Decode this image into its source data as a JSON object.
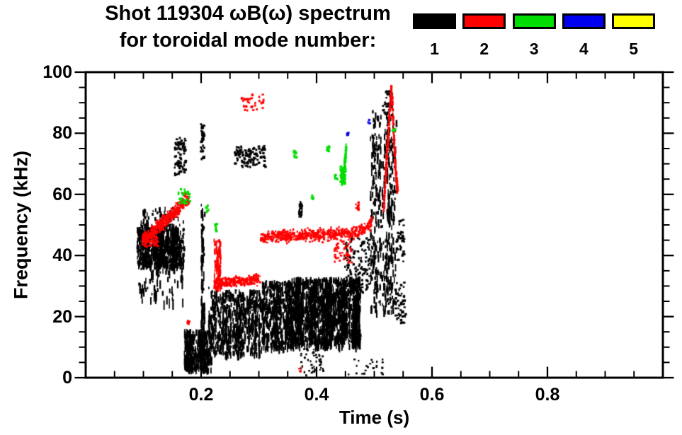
{
  "title": {
    "line1": "Shot 119304 ωB(ω) spectrum",
    "line2": "for toroidal mode number:"
  },
  "legend": {
    "entries": [
      {
        "label": "1",
        "color": "#000000"
      },
      {
        "label": "2",
        "color": "#ff0000"
      },
      {
        "label": "3",
        "color": "#00dd00"
      },
      {
        "label": "4",
        "color": "#0000ee"
      },
      {
        "label": "5",
        "color": "#ffff00"
      }
    ]
  },
  "colors": {
    "background": "#ffffff",
    "axis": "#000000"
  },
  "chart_data": {
    "type": "scatter",
    "variant": "magnetic-spectrogram-mode-scatter",
    "title": "Shot 119304 ωB(ω) spectrum for toroidal mode number: 1 2 3 4 5",
    "xlabel": "Time (s)",
    "ylabel": "Frequency (kHz)",
    "xlim": [
      0,
      1.0
    ],
    "ylim": [
      0,
      100
    ],
    "grid": false,
    "legend_position": "top-right, above plot box",
    "x_major_ticks": [
      0,
      0.2,
      0.4,
      0.6,
      0.8,
      1.0
    ],
    "x_tick_labels": [
      {
        "t": 0.2,
        "label": "0.2"
      },
      {
        "t": 0.4,
        "label": "0.4"
      },
      {
        "t": 0.6,
        "label": "0.6"
      },
      {
        "t": 0.8,
        "label": "0.8"
      }
    ],
    "x_minor_step": 0.05,
    "y_major_ticks": [
      0,
      20,
      40,
      60,
      80,
      100
    ],
    "y_tick_labels": [
      "0",
      "20",
      "40",
      "60",
      "80",
      "100"
    ],
    "y_minor_step": 5,
    "modes": [
      {
        "mode": 1,
        "color": "#000000"
      },
      {
        "mode": 2,
        "color": "#ff0000"
      },
      {
        "mode": 3,
        "color": "#00dd00"
      },
      {
        "mode": 4,
        "color": "#0000ee"
      },
      {
        "mode": 5,
        "color": "#ffff00"
      }
    ],
    "features": [
      {
        "mode": 1,
        "shape": "streaks",
        "t": [
          0.088,
          0.17
        ],
        "f": [
          37,
          50.5
        ],
        "count": 1000,
        "len": 9
      },
      {
        "mode": 1,
        "shape": "streaks",
        "t": [
          0.091,
          0.168
        ],
        "f": [
          25,
          38
        ],
        "count": 110,
        "len": 13
      },
      {
        "mode": 1,
        "shape": "dots",
        "t": [
          0.154,
          0.173
        ],
        "f": [
          66,
          79
        ],
        "count": 80,
        "size": 2.4
      },
      {
        "mode": 1,
        "shape": "streaks",
        "t": [
          0.199,
          0.205
        ],
        "f": [
          5,
          57
        ],
        "count": 120,
        "len": 12
      },
      {
        "mode": 1,
        "shape": "dots",
        "t": [
          0.199,
          0.205
        ],
        "f": [
          71,
          83
        ],
        "count": 45,
        "size": 2.2
      },
      {
        "mode": 1,
        "shape": "streaks",
        "t": [
          0.17,
          0.216
        ],
        "f": [
          3,
          16
        ],
        "count": 600,
        "len": 9
      },
      {
        "mode": 1,
        "shape": "streaks",
        "t": [
          0.216,
          0.305
        ],
        "f": [
          8,
          29
        ],
        "count": 1000,
        "len": 9
      },
      {
        "mode": 1,
        "shape": "streaks",
        "t": [
          0.305,
          0.356
        ],
        "f": [
          10,
          32
        ],
        "count": 850,
        "len": 9
      },
      {
        "mode": 1,
        "shape": "streaks",
        "t": [
          0.356,
          0.475
        ],
        "f": [
          11,
          33
        ],
        "count": 2400,
        "len": 10
      },
      {
        "mode": 1,
        "shape": "dots",
        "t": [
          0.258,
          0.313
        ],
        "f": [
          69,
          76
        ],
        "count": 120,
        "size": 2.4
      },
      {
        "mode": 1,
        "shape": "streaks",
        "t": [
          0.368,
          0.374
        ],
        "f": [
          53,
          58
        ],
        "count": 22,
        "len": 5
      },
      {
        "mode": 1,
        "shape": "streaks",
        "t": [
          0.212,
          0.217
        ],
        "f": [
          5,
          30
        ],
        "count": 40,
        "len": 10
      },
      {
        "mode": 1,
        "shape": "streaks",
        "t": [
          0.492,
          0.537
        ],
        "f": [
          22,
          88
        ],
        "count": 650,
        "len": 9
      },
      {
        "mode": 1,
        "shape": "dots",
        "t": [
          0.514,
          0.531
        ],
        "f": [
          86,
          94
        ],
        "count": 40,
        "size": 2.2
      },
      {
        "mode": 1,
        "shape": "dots",
        "t": [
          0.536,
          0.554
        ],
        "f": [
          18,
          32
        ],
        "count": 55,
        "size": 2.2
      },
      {
        "mode": 1,
        "shape": "dots",
        "t": [
          0.538,
          0.552
        ],
        "f": [
          38,
          52
        ],
        "count": 40,
        "size": 2.2
      },
      {
        "mode": 1,
        "shape": "dots",
        "t": [
          0.372,
          0.412
        ],
        "f": [
          0.5,
          14
        ],
        "count": 70,
        "size": 2
      },
      {
        "mode": 1,
        "shape": "dots",
        "t": [
          0.455,
          0.517
        ],
        "f": [
          1,
          7
        ],
        "count": 22,
        "size": 2
      },
      {
        "mode": 1,
        "shape": "dots",
        "t": [
          0.448,
          0.492
        ],
        "f": [
          28,
          46
        ],
        "count": 130,
        "size": 2.2
      },
      {
        "mode": 1,
        "shape": "streaks",
        "t": [
          0.095,
          0.168
        ],
        "f": [
          50.5,
          56
        ],
        "count": 90,
        "len": 6
      },
      {
        "mode": 2,
        "shape": "path",
        "path": [
          [
            0.098,
            45.5
          ],
          [
            0.112,
            47
          ],
          [
            0.128,
            50
          ],
          [
            0.147,
            53
          ],
          [
            0.16,
            55.5
          ],
          [
            0.169,
            57.5
          ]
        ],
        "thickness": 2.6,
        "count": 400
      },
      {
        "mode": 2,
        "shape": "dots",
        "t": [
          0.1,
          0.125
        ],
        "f": [
          43,
          46
        ],
        "count": 50,
        "size": 2.2
      },
      {
        "mode": 2,
        "shape": "dots",
        "t": [
          0.168,
          0.179
        ],
        "f": [
          56.5,
          60.5
        ],
        "count": 30,
        "size": 2.2
      },
      {
        "mode": 2,
        "shape": "streaks",
        "t": [
          0.2215,
          0.2325
        ],
        "f": [
          30,
          45.5
        ],
        "count": 150,
        "len": 7
      },
      {
        "mode": 2,
        "shape": "path",
        "path": [
          [
            0.2225,
            31
          ],
          [
            0.25,
            31.3
          ],
          [
            0.275,
            31.8
          ],
          [
            0.302,
            32.4
          ]
        ],
        "thickness": 2.2,
        "count": 240
      },
      {
        "mode": 2,
        "shape": "path",
        "path": [
          [
            0.303,
            46
          ],
          [
            0.34,
            46.4
          ],
          [
            0.38,
            46.6
          ],
          [
            0.42,
            46.9
          ],
          [
            0.45,
            47.3
          ],
          [
            0.472,
            48
          ],
          [
            0.488,
            49.5
          ],
          [
            0.497,
            51.5
          ]
        ],
        "thickness": 2.4,
        "count": 560
      },
      {
        "mode": 2,
        "shape": "dots",
        "t": [
          0.43,
          0.462
        ],
        "f": [
          37,
          45
        ],
        "count": 45,
        "size": 2.2
      },
      {
        "mode": 2,
        "shape": "dots",
        "t": [
          0.268,
          0.308
        ],
        "f": [
          87.5,
          93
        ],
        "count": 30,
        "size": 2.4
      },
      {
        "mode": 2,
        "shape": "path",
        "path": [
          [
            0.516,
            55
          ],
          [
            0.52,
            68
          ],
          [
            0.524,
            80
          ],
          [
            0.527,
            88
          ],
          [
            0.529,
            95
          ],
          [
            0.531,
            90
          ],
          [
            0.533,
            82
          ],
          [
            0.535,
            74
          ],
          [
            0.537,
            67
          ],
          [
            0.54,
            61
          ]
        ],
        "thickness": 1.8,
        "count": 320
      },
      {
        "mode": 2,
        "shape": "dots",
        "t": [
          0.468,
          0.474
        ],
        "f": [
          55,
          57.5
        ],
        "count": 10,
        "size": 2.2
      },
      {
        "mode": 2,
        "shape": "dots",
        "t": [
          0.175,
          0.18
        ],
        "f": [
          17.5,
          19
        ],
        "count": 7,
        "size": 2.2
      },
      {
        "mode": 2,
        "shape": "dots",
        "t": [
          0.369,
          0.373
        ],
        "f": [
          2,
          3.5
        ],
        "count": 5,
        "size": 2
      },
      {
        "mode": 3,
        "shape": "dots",
        "t": [
          0.16,
          0.181
        ],
        "f": [
          57,
          62
        ],
        "count": 28,
        "size": 2.4
      },
      {
        "mode": 3,
        "shape": "dots",
        "t": [
          0.224,
          0.228
        ],
        "f": [
          47.5,
          50.5
        ],
        "count": 10,
        "size": 2.4
      },
      {
        "mode": 3,
        "shape": "dots",
        "t": [
          0.208,
          0.213
        ],
        "f": [
          54,
          56.5
        ],
        "count": 7,
        "size": 2.2
      },
      {
        "mode": 3,
        "shape": "dots",
        "t": [
          0.36,
          0.366
        ],
        "f": [
          72,
          74.5
        ],
        "count": 9,
        "size": 2.4
      },
      {
        "mode": 3,
        "shape": "dots",
        "t": [
          0.417,
          0.422
        ],
        "f": [
          74,
          76
        ],
        "count": 7,
        "size": 2.4
      },
      {
        "mode": 3,
        "shape": "path",
        "path": [
          [
            0.4435,
            63.5
          ],
          [
            0.4455,
            66
          ],
          [
            0.4475,
            69
          ],
          [
            0.4495,
            72
          ],
          [
            0.451,
            75.5
          ]
        ],
        "thickness": 1.8,
        "count": 90
      },
      {
        "mode": 3,
        "shape": "dots",
        "t": [
          0.441,
          0.45
        ],
        "f": [
          63.5,
          69.5
        ],
        "count": 60,
        "size": 2.4
      },
      {
        "mode": 3,
        "shape": "dots",
        "t": [
          0.431,
          0.436
        ],
        "f": [
          65,
          66.5
        ],
        "count": 8,
        "size": 2.2
      },
      {
        "mode": 3,
        "shape": "dots",
        "t": [
          0.531,
          0.536
        ],
        "f": [
          79.5,
          81.5
        ],
        "count": 6,
        "size": 2.2
      },
      {
        "mode": 3,
        "shape": "dots",
        "t": [
          0.39,
          0.395
        ],
        "f": [
          58.5,
          60
        ],
        "count": 5,
        "size": 2.2
      },
      {
        "mode": 4,
        "shape": "dots",
        "t": [
          0.452,
          0.456
        ],
        "f": [
          79,
          80.5
        ],
        "count": 4,
        "size": 2.2
      },
      {
        "mode": 4,
        "shape": "dots",
        "t": [
          0.488,
          0.492
        ],
        "f": [
          83,
          84.5
        ],
        "count": 4,
        "size": 2.2
      }
    ]
  }
}
